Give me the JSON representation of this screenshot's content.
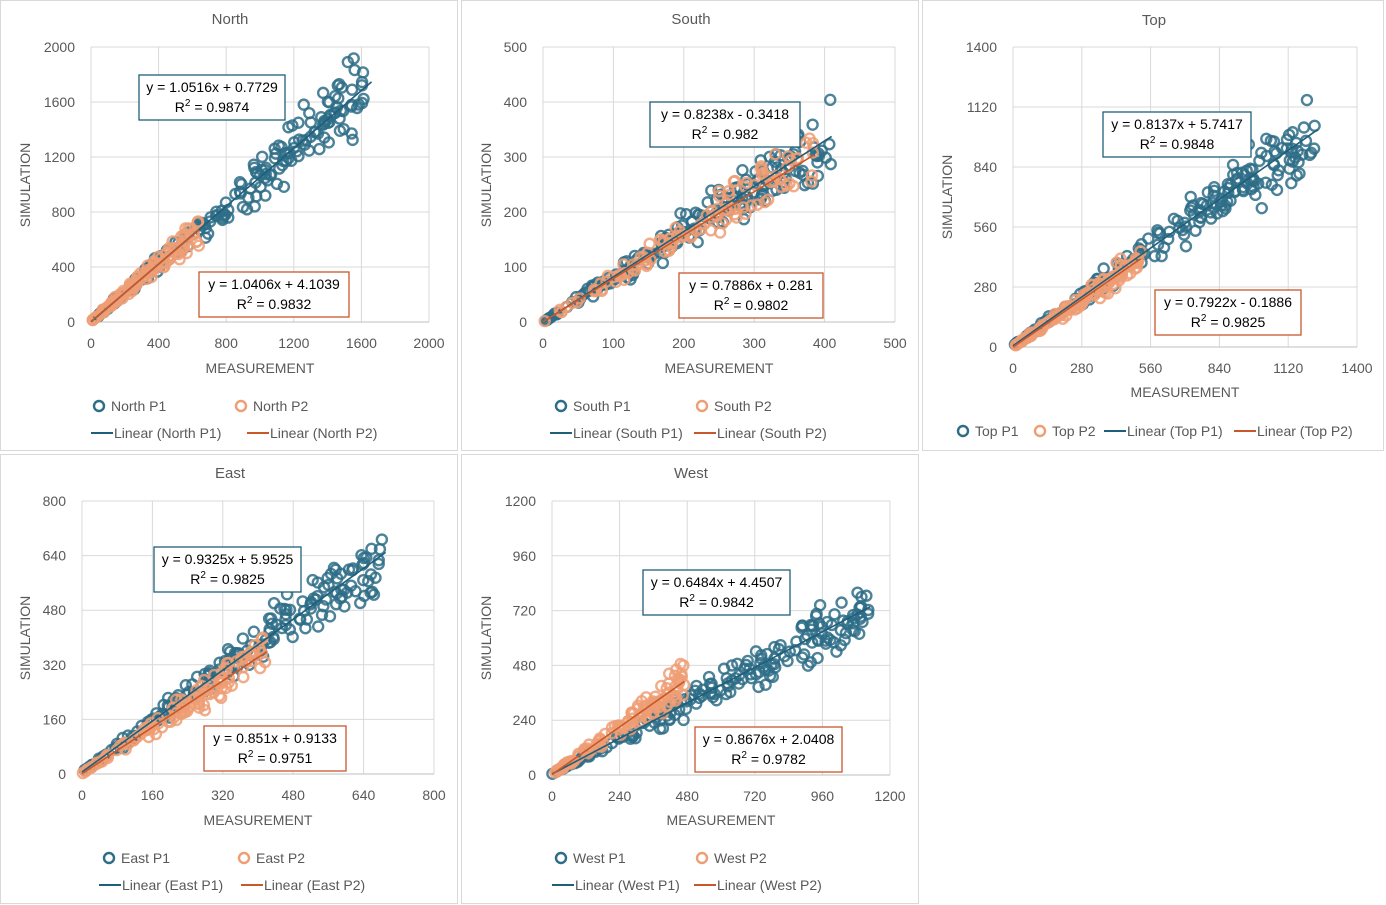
{
  "colors": {
    "p1": "#2e6d87",
    "p2": "#ef9e74",
    "line1": "#1f5f7a",
    "line2": "#c8582a",
    "grid": "#d9d9d9",
    "axis": "#bfbfbf"
  },
  "chart_data": [
    {
      "id": "north",
      "type": "scatter",
      "title": "North",
      "xlabel": "MEASUREMENT",
      "ylabel": "SIMULATION",
      "xlim": [
        0,
        2000
      ],
      "ylim": [
        0,
        2000
      ],
      "xticks": [
        "0",
        "400",
        "800",
        "1200",
        "1600",
        "2000"
      ],
      "yticks": [
        "0",
        "400",
        "800",
        "1200",
        "1600",
        "2000"
      ],
      "grid": true,
      "legend_position": "bottom",
      "series": [
        {
          "name": "North P1",
          "slope": 1.0516,
          "intercept": 0.7729,
          "x_range": [
            0,
            1660
          ],
          "spread": 0.07
        },
        {
          "name": "North P2",
          "slope": 1.0406,
          "intercept": 4.1039,
          "x_range": [
            0,
            640
          ],
          "spread": 0.08
        }
      ],
      "trendlines": [
        {
          "name": "Linear (North P1)",
          "equation": "y = 1.0516x + 0.7729",
          "r2": "0.9874",
          "x_range": [
            0,
            1660
          ]
        },
        {
          "name": "Linear (North P2)",
          "equation": "y = 1.0406x + 4.1039",
          "r2": "0.9832",
          "x_range": [
            0,
            640
          ]
        }
      ]
    },
    {
      "id": "south",
      "type": "scatter",
      "title": "South",
      "xlabel": "MEASUREMENT",
      "ylabel": "SIMULATION",
      "xlim": [
        0,
        500
      ],
      "ylim": [
        0,
        500
      ],
      "xticks": [
        "0",
        "100",
        "200",
        "300",
        "400",
        "500"
      ],
      "yticks": [
        "0",
        "100",
        "200",
        "300",
        "400",
        "500"
      ],
      "grid": true,
      "legend_position": "bottom",
      "series": [
        {
          "name": "South P1",
          "slope": 0.8238,
          "intercept": -0.3418,
          "x_range": [
            0,
            410
          ],
          "spread": 0.09
        },
        {
          "name": "South P2",
          "slope": 0.7886,
          "intercept": 0.281,
          "x_range": [
            0,
            385
          ],
          "spread": 0.09
        }
      ],
      "trendlines": [
        {
          "name": "Linear (South P1)",
          "equation": "y = 0.8238x - 0.3418",
          "r2": "0.982",
          "x_range": [
            0,
            410
          ]
        },
        {
          "name": "Linear (South P2)",
          "equation": "y = 0.7886x + 0.281",
          "r2": "0.9802",
          "x_range": [
            0,
            385
          ]
        }
      ]
    },
    {
      "id": "top",
      "type": "scatter",
      "title": "Top",
      "xlabel": "MEASUREMENT",
      "ylabel": "SIMULATION",
      "xlim": [
        0,
        1400
      ],
      "ylim": [
        0,
        1400
      ],
      "xticks": [
        "0",
        "280",
        "560",
        "840",
        "1120",
        "1400"
      ],
      "yticks": [
        "0",
        "280",
        "560",
        "840",
        "1120",
        "1400"
      ],
      "grid": true,
      "legend_position": "bottom",
      "series": [
        {
          "name": "Top P1",
          "slope": 0.8137,
          "intercept": 5.7417,
          "x_range": [
            0,
            1240
          ],
          "spread": 0.08
        },
        {
          "name": "Top P2",
          "slope": 0.7922,
          "intercept": -0.1886,
          "x_range": [
            0,
            520
          ],
          "spread": 0.08
        }
      ],
      "trendlines": [
        {
          "name": "Linear (Top P1)",
          "equation": "y = 0.8137x + 5.7417",
          "r2": "0.9848",
          "x_range": [
            0,
            1240
          ]
        },
        {
          "name": "Linear (Top P2)",
          "equation": "y = 0.7922x - 0.1886",
          "r2": "0.9825",
          "x_range": [
            0,
            520
          ]
        }
      ]
    },
    {
      "id": "east",
      "type": "scatter",
      "title": "East",
      "xlabel": "MEASUREMENT",
      "ylabel": "SIMULATION",
      "xlim": [
        0,
        800
      ],
      "ylim": [
        0,
        800
      ],
      "xticks": [
        "0",
        "160",
        "320",
        "480",
        "640",
        "800"
      ],
      "yticks": [
        "0",
        "160",
        "320",
        "480",
        "640",
        "800"
      ],
      "grid": true,
      "legend_position": "bottom",
      "series": [
        {
          "name": "East P1",
          "slope": 0.9325,
          "intercept": 5.9525,
          "x_range": [
            0,
            690
          ],
          "spread": 0.08
        },
        {
          "name": "East P2",
          "slope": 0.851,
          "intercept": 0.9133,
          "x_range": [
            0,
            420
          ],
          "spread": 0.09
        }
      ],
      "trendlines": [
        {
          "name": "Linear (East P1)",
          "equation": "y = 0.9325x + 5.9525",
          "r2": "0.9825",
          "x_range": [
            0,
            690
          ]
        },
        {
          "name": "Linear (East P2)",
          "equation": "y = 0.851x + 0.9133",
          "r2": "0.9751",
          "x_range": [
            0,
            420
          ]
        }
      ]
    },
    {
      "id": "west",
      "type": "scatter",
      "title": "West",
      "xlabel": "MEASUREMENT",
      "ylabel": "SIMULATION",
      "xlim": [
        0,
        1200
      ],
      "ylim": [
        0,
        1200
      ],
      "xticks": [
        "0",
        "240",
        "480",
        "720",
        "960",
        "1200"
      ],
      "yticks": [
        "0",
        "240",
        "480",
        "720",
        "960",
        "1200"
      ],
      "grid": true,
      "legend_position": "bottom",
      "series": [
        {
          "name": "West P1",
          "slope": 0.6484,
          "intercept": 4.4507,
          "x_range": [
            0,
            1130
          ],
          "spread": 0.09
        },
        {
          "name": "West P2",
          "slope": 0.8676,
          "intercept": 2.0408,
          "x_range": [
            0,
            470
          ],
          "spread": 0.1
        }
      ],
      "trendlines": [
        {
          "name": "Linear (West P1)",
          "equation": "y = 0.6484x + 4.4507",
          "r2": "0.9842",
          "x_range": [
            0,
            1130
          ]
        },
        {
          "name": "Linear (West P2)",
          "equation": "y = 0.8676x + 2.0408",
          "r2": "0.9782",
          "x_range": [
            0,
            470
          ]
        }
      ]
    }
  ]
}
